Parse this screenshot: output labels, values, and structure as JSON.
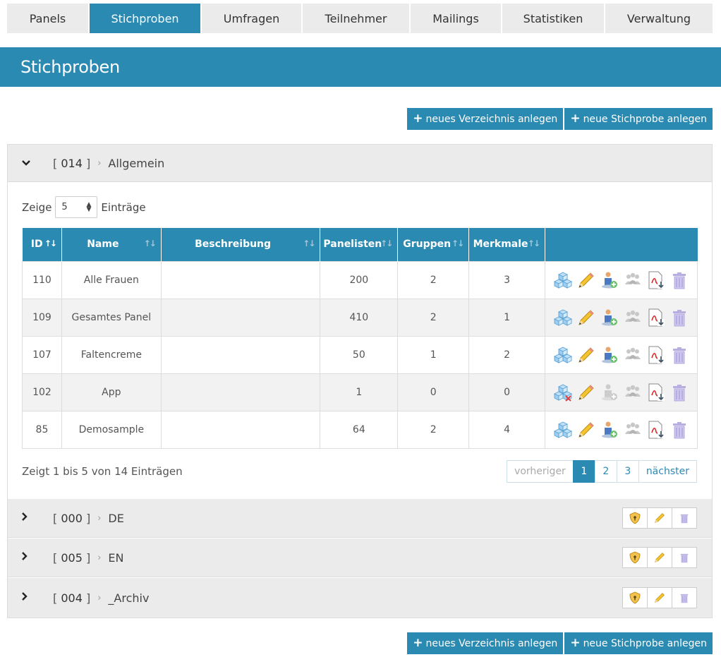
{
  "nav": {
    "tabs": [
      {
        "label": "Panels",
        "active": false
      },
      {
        "label": "Stichproben",
        "active": true
      },
      {
        "label": "Umfragen",
        "active": false
      },
      {
        "label": "Teilnehmer",
        "active": false
      },
      {
        "label": "Mailings",
        "active": false
      },
      {
        "label": "Statistiken",
        "active": false
      },
      {
        "label": "Verwaltung",
        "active": false
      }
    ]
  },
  "page": {
    "title": "Stichproben"
  },
  "buttons": {
    "new_folder": "neues Verzeichnis anlegen",
    "new_sample": "neue Stichprobe anlegen"
  },
  "folders": [
    {
      "id": "014",
      "name": "Allgemein",
      "expanded": true
    },
    {
      "id": "000",
      "name": "DE",
      "expanded": false
    },
    {
      "id": "005",
      "name": "EN",
      "expanded": false
    },
    {
      "id": "004",
      "name": "_Archiv",
      "expanded": false
    }
  ],
  "table": {
    "show_label": "Zeige",
    "entries_label": "Einträge",
    "page_size": "5",
    "columns": [
      "ID",
      "Name",
      "Beschreibung",
      "Panelisten",
      "Gruppen",
      "Merkmale"
    ],
    "rows": [
      {
        "id": "110",
        "name": "Alle Frauen",
        "desc": "",
        "panelists": "200",
        "groups": "2",
        "features": "3"
      },
      {
        "id": "109",
        "name": "Gesamtes Panel",
        "desc": "",
        "panelists": "410",
        "groups": "2",
        "features": "1"
      },
      {
        "id": "107",
        "name": "Faltencreme",
        "desc": "",
        "panelists": "50",
        "groups": "1",
        "features": "2"
      },
      {
        "id": "102",
        "name": "App",
        "desc": "",
        "panelists": "1",
        "groups": "0",
        "features": "0"
      },
      {
        "id": "85",
        "name": "Demosample",
        "desc": "",
        "panelists": "64",
        "groups": "2",
        "features": "4"
      }
    ],
    "row_icons": [
      "cubes-icon",
      "pencil-icon",
      "add-person-icon",
      "group-icon",
      "pdf-export-icon",
      "trash-icon"
    ],
    "info": "Zeigt 1 bis 5 von 14 Einträgen"
  },
  "pager": {
    "prev": "vorheriger",
    "pages": [
      "1",
      "2",
      "3"
    ],
    "current": "1",
    "next": "nächster"
  },
  "folder_icons": [
    "shield-icon",
    "pencil-icon",
    "trash-icon"
  ],
  "colors": {
    "accent": "#2b8ab2",
    "tab_bg": "#ebebeb"
  }
}
